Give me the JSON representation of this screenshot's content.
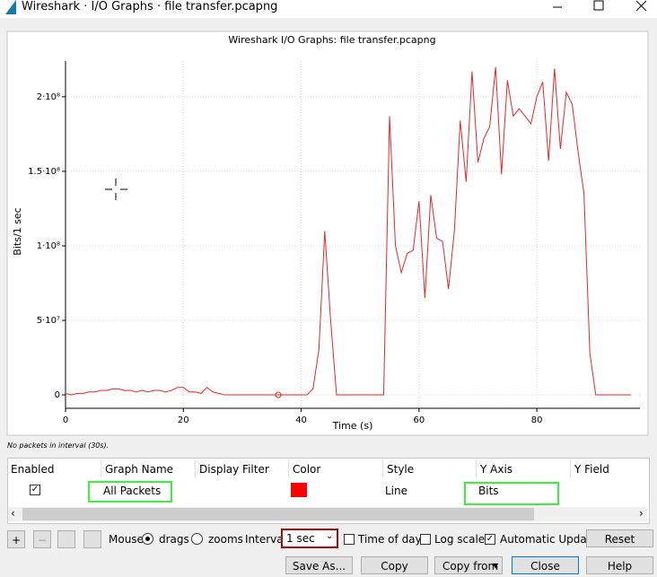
{
  "window": {
    "title": "Wireshark · I/O Graphs · file transfer.pcapng"
  },
  "chart_data": {
    "type": "line",
    "title": "Wireshark I/O Graphs: file transfer.pcapng",
    "x_label": "Time (s)",
    "y_label": "Bits/1 sec",
    "color": "#e8262a",
    "grid": true,
    "xlim": [
      0,
      97.5
    ],
    "xticks": [
      0,
      20,
      40,
      60,
      80
    ],
    "ylim": [
      -9000000,
      224000000
    ],
    "yticks": [
      0,
      {
        "value": 50000000,
        "label": "5·10⁷"
      },
      {
        "value": 100000000,
        "label": "1·10⁸"
      },
      {
        "value": 150000000,
        "label": "1.5·10⁸"
      },
      {
        "value": 200000000,
        "label": "2·10⁸"
      }
    ],
    "x": [
      0,
      1,
      2,
      3,
      4,
      5,
      6,
      7,
      8,
      9,
      10,
      11,
      12,
      13,
      14,
      15,
      16,
      17,
      18,
      19,
      20,
      21,
      22,
      23,
      24,
      25,
      26,
      27,
      28,
      29,
      30,
      31,
      32,
      33,
      34,
      35,
      36,
      37,
      38,
      39,
      40,
      41,
      42,
      43,
      44,
      45,
      46,
      47,
      48,
      49,
      50,
      51,
      52,
      53,
      54,
      55,
      56,
      57,
      58,
      59,
      60,
      61,
      62,
      63,
      64,
      65,
      66,
      67,
      68,
      69,
      70,
      71,
      72,
      73,
      74,
      75,
      76,
      77,
      78,
      79,
      80,
      81,
      82,
      83,
      84,
      85,
      86,
      87,
      88,
      89,
      90,
      91,
      92,
      93,
      94,
      95,
      96
    ],
    "values": [
      1000000,
      0,
      1000000,
      1000000,
      2000000,
      2000000,
      3000000,
      3000000,
      4000000,
      4000000,
      3000000,
      3000000,
      2000000,
      3000000,
      2000000,
      3000000,
      3000000,
      2000000,
      3000000,
      5000000,
      5000000,
      2000000,
      2000000,
      1000000,
      5000000,
      2000000,
      1000000,
      0,
      0,
      0,
      0,
      0,
      0,
      0,
      0,
      0,
      0,
      0,
      0,
      0,
      0,
      0,
      4000000,
      30000000,
      110000000,
      50000000,
      0,
      0,
      0,
      0,
      0,
      0,
      0,
      0,
      0,
      187000000,
      100000000,
      82000000,
      95000000,
      97000000,
      130000000,
      65000000,
      134000000,
      105000000,
      103000000,
      71000000,
      110000000,
      184000000,
      143000000,
      217000000,
      156000000,
      172000000,
      180000000,
      220000000,
      148000000,
      211000000,
      187000000,
      192000000,
      187000000,
      182000000,
      200000000,
      210000000,
      157000000,
      219000000,
      165000000,
      203000000,
      195000000,
      163000000,
      135000000,
      28000000,
      0,
      0,
      0,
      0,
      0,
      0,
      0
    ]
  },
  "status": "No packets in interval (30s).",
  "table": {
    "headers": [
      "Enabled",
      "Graph Name",
      "Display Filter",
      "Color",
      "Style",
      "Y Axis",
      "Y Field"
    ],
    "row": {
      "graph_name": "All Packets",
      "style": "Line",
      "y_axis": "Bits"
    }
  },
  "controls": {
    "plus": "+",
    "minus": "−",
    "mouse": "Mouse",
    "drags": "drags",
    "zooms": "zooms",
    "interval": "Interval",
    "interval_value": "1 sec",
    "time_of_day": "Time of day",
    "log_scale": "Log scale",
    "automatic_update": "Automatic Update",
    "reset": "Reset",
    "save_as": "Save As...",
    "copy": "Copy",
    "copy_from": "Copy from",
    "close": "Close",
    "help": "Help"
  }
}
